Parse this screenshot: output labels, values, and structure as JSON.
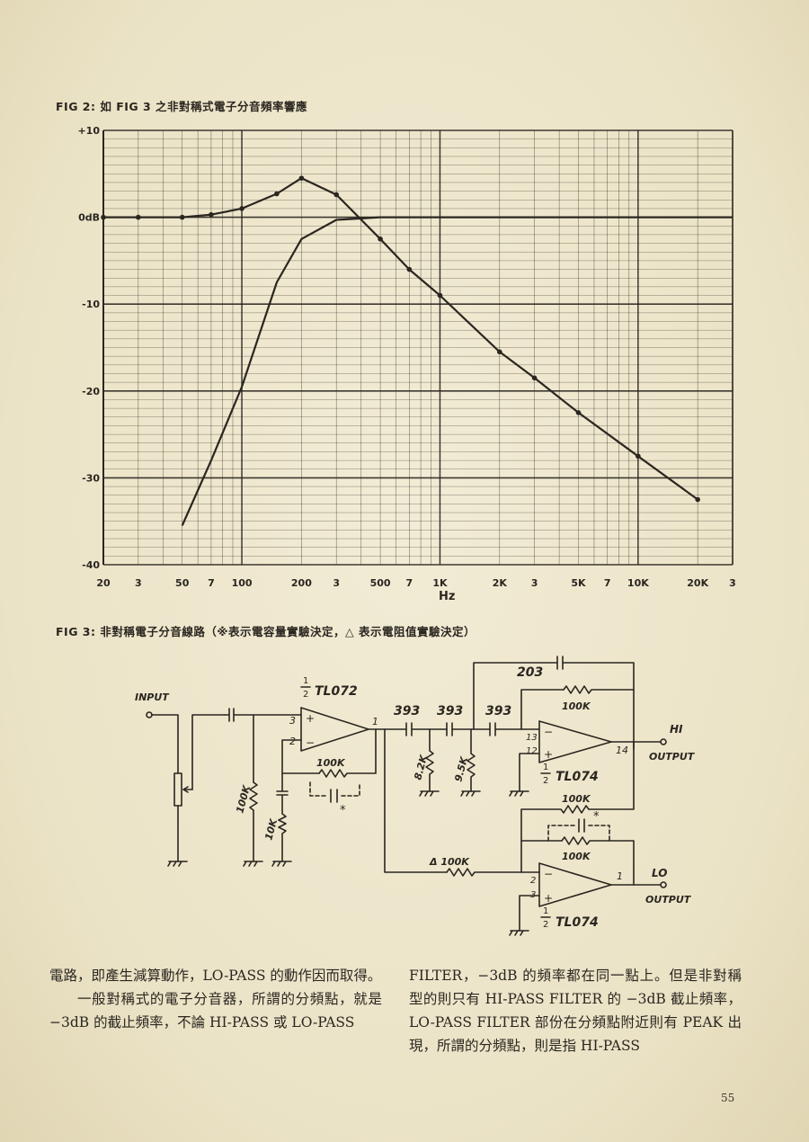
{
  "fig2": {
    "caption": "FIG 2: 如 FIG 3 之非對稱式電子分音頻率響應",
    "chart_data": {
      "type": "line",
      "title": "",
      "xlabel": "Hz",
      "ylabel": "",
      "x_scale": "log",
      "xlim": [
        20,
        30000
      ],
      "ylim": [
        -40,
        10
      ],
      "grid": true,
      "y_ticks": [
        "+10",
        "0dB",
        "-10",
        "-20",
        "-30",
        "-40"
      ],
      "y_tick_values": [
        10,
        0,
        -10,
        -20,
        -30,
        -40
      ],
      "x_ticks": [
        "20",
        "3",
        "50",
        "7",
        "100",
        "200",
        "3",
        "500",
        "7",
        "1K",
        "2K",
        "3",
        "5K",
        "7",
        "10K",
        "20K",
        "3"
      ],
      "x_tick_values": [
        20,
        30,
        50,
        70,
        100,
        200,
        300,
        500,
        700,
        1000,
        2000,
        3000,
        5000,
        7000,
        10000,
        20000,
        30000
      ],
      "series": [
        {
          "name": "",
          "x": [
            20,
            30,
            50,
            70,
            100,
            150,
            200,
            300,
            500,
            700,
            1000,
            2000,
            3000,
            5000,
            10000,
            20000
          ],
          "y": [
            0,
            0,
            0,
            0.3,
            1,
            2.7,
            4.5,
            2.6,
            -2.5,
            -6,
            -9,
            -15.5,
            -18.5,
            -22.5,
            -27.5,
            -32.5
          ]
        },
        {
          "name": "",
          "x": [
            50,
            70,
            100,
            150,
            200,
            300,
            500,
            1000,
            2000,
            5000,
            10000,
            20000,
            30000
          ],
          "y": [
            -35.5,
            -28,
            -19.5,
            -7.5,
            -2.5,
            -0.3,
            0,
            0,
            0,
            0,
            0,
            0,
            0
          ]
        }
      ]
    }
  },
  "fig3": {
    "caption": "FIG 3: 非對稱電子分音線路（※表示電容量實驗決定，△ 表示電阻值實驗決定）",
    "labels": {
      "input": "INPUT",
      "ic1": "TL072",
      "ic2": "TL074",
      "ic3": "TL074",
      "half": "1",
      "half_den": "2",
      "cap_203": "203",
      "r_100k_a": "100K",
      "r_100k_b": "100K",
      "r_100k_c": "100K",
      "r_100k_d": "100K",
      "r_100k_e": "100K",
      "r_100k_in": "Δ 100K",
      "r_10k": "10K",
      "r_8k2": "8.2K",
      "r_9k5": "9.5K",
      "cap_393_a": "393",
      "cap_393_b": "393",
      "cap_393_c": "393",
      "hi": "HI",
      "lo": "LO",
      "output": "OUTPUT",
      "star": "*",
      "pin3": "3",
      "pin2": "2",
      "pin1": "1",
      "pin13": "13",
      "pin12": "12",
      "pin14": "14",
      "pin2b": "2",
      "pin3b": "3",
      "pin1b": "1",
      "plus": "+",
      "minus": "−"
    }
  },
  "text": {
    "left_p1": "電路，即產生減算動作，LO-PASS 的動作因而取得。",
    "left_p2": "一般對稱式的電子分音器，所謂的分頻點，就是 −3dB 的截止頻率，不論 HI-PASS 或 LO-PASS",
    "right_p1": "FILTER，−3dB 的頻率都在同一點上。但是非對稱型的則只有 HI-PASS FILTER 的 −3dB 截止頻率，LO-PASS FILTER 部份在分頻點附近則有 PEAK 出現，所謂的分頻點，則是指 HI-PASS"
  },
  "page_number": "55",
  "colors": {
    "paper": "#ede6cc",
    "ink": "#2a2620"
  }
}
